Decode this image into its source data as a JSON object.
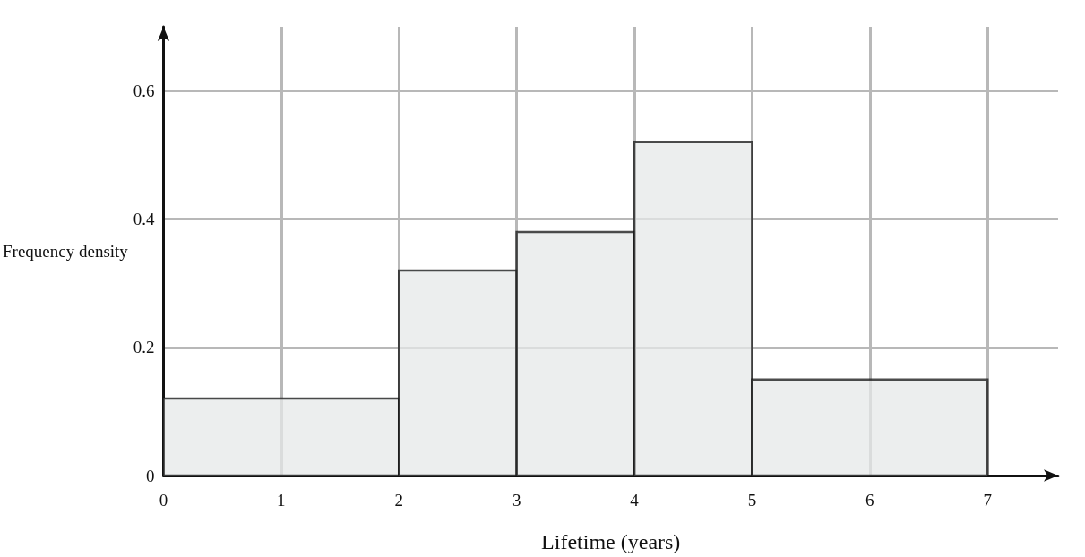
{
  "chart_data": {
    "type": "histogram",
    "xlabel": "Lifetime (years)",
    "ylabel": "Frequency density",
    "bins": [
      0,
      2,
      3,
      4,
      5,
      7
    ],
    "values": [
      0.12,
      0.32,
      0.38,
      0.52,
      0.15
    ],
    "color": "#e6e8e8",
    "xlim": [
      0,
      7.6
    ],
    "xticks": [
      0,
      1,
      2,
      3,
      4,
      5,
      6,
      7
    ],
    "ylim": [
      0,
      0.7
    ],
    "yticks": [
      0,
      0.2,
      0.4,
      0.6
    ],
    "grid": true
  }
}
